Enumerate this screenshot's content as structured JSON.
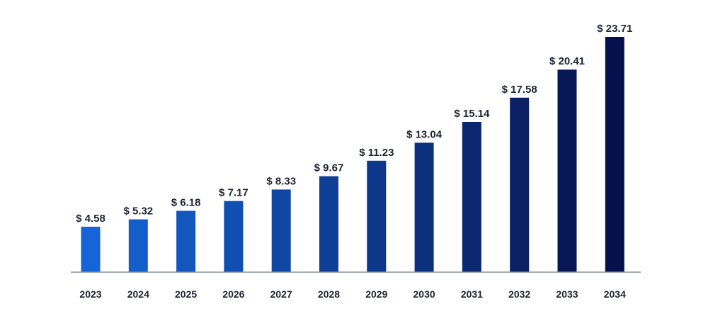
{
  "chart_data": {
    "type": "bar",
    "title": "",
    "xlabel": "",
    "ylabel": "",
    "categories": [
      "2023",
      "2024",
      "2025",
      "2026",
      "2027",
      "2028",
      "2029",
      "2030",
      "2031",
      "2032",
      "2033",
      "2034"
    ],
    "values": [
      4.58,
      5.32,
      6.18,
      7.17,
      8.33,
      9.67,
      11.23,
      13.04,
      15.14,
      17.58,
      20.41,
      23.71
    ],
    "value_labels": [
      "$ 4.58",
      "$ 5.32",
      "$ 6.18",
      "$ 7.17",
      "$ 8.33",
      "$ 9.67",
      "$ 11.23",
      "$ 13.04",
      "$ 15.14",
      "$ 17.58",
      "$ 20.41",
      "$ 23.71"
    ],
    "ylim": [
      0,
      24
    ],
    "grid": false,
    "legend": "none",
    "colors": {
      "bar_start": "#1565d8",
      "bar_end": "#07104a",
      "axis": "#8a8f99",
      "text": "#1f2430"
    }
  }
}
